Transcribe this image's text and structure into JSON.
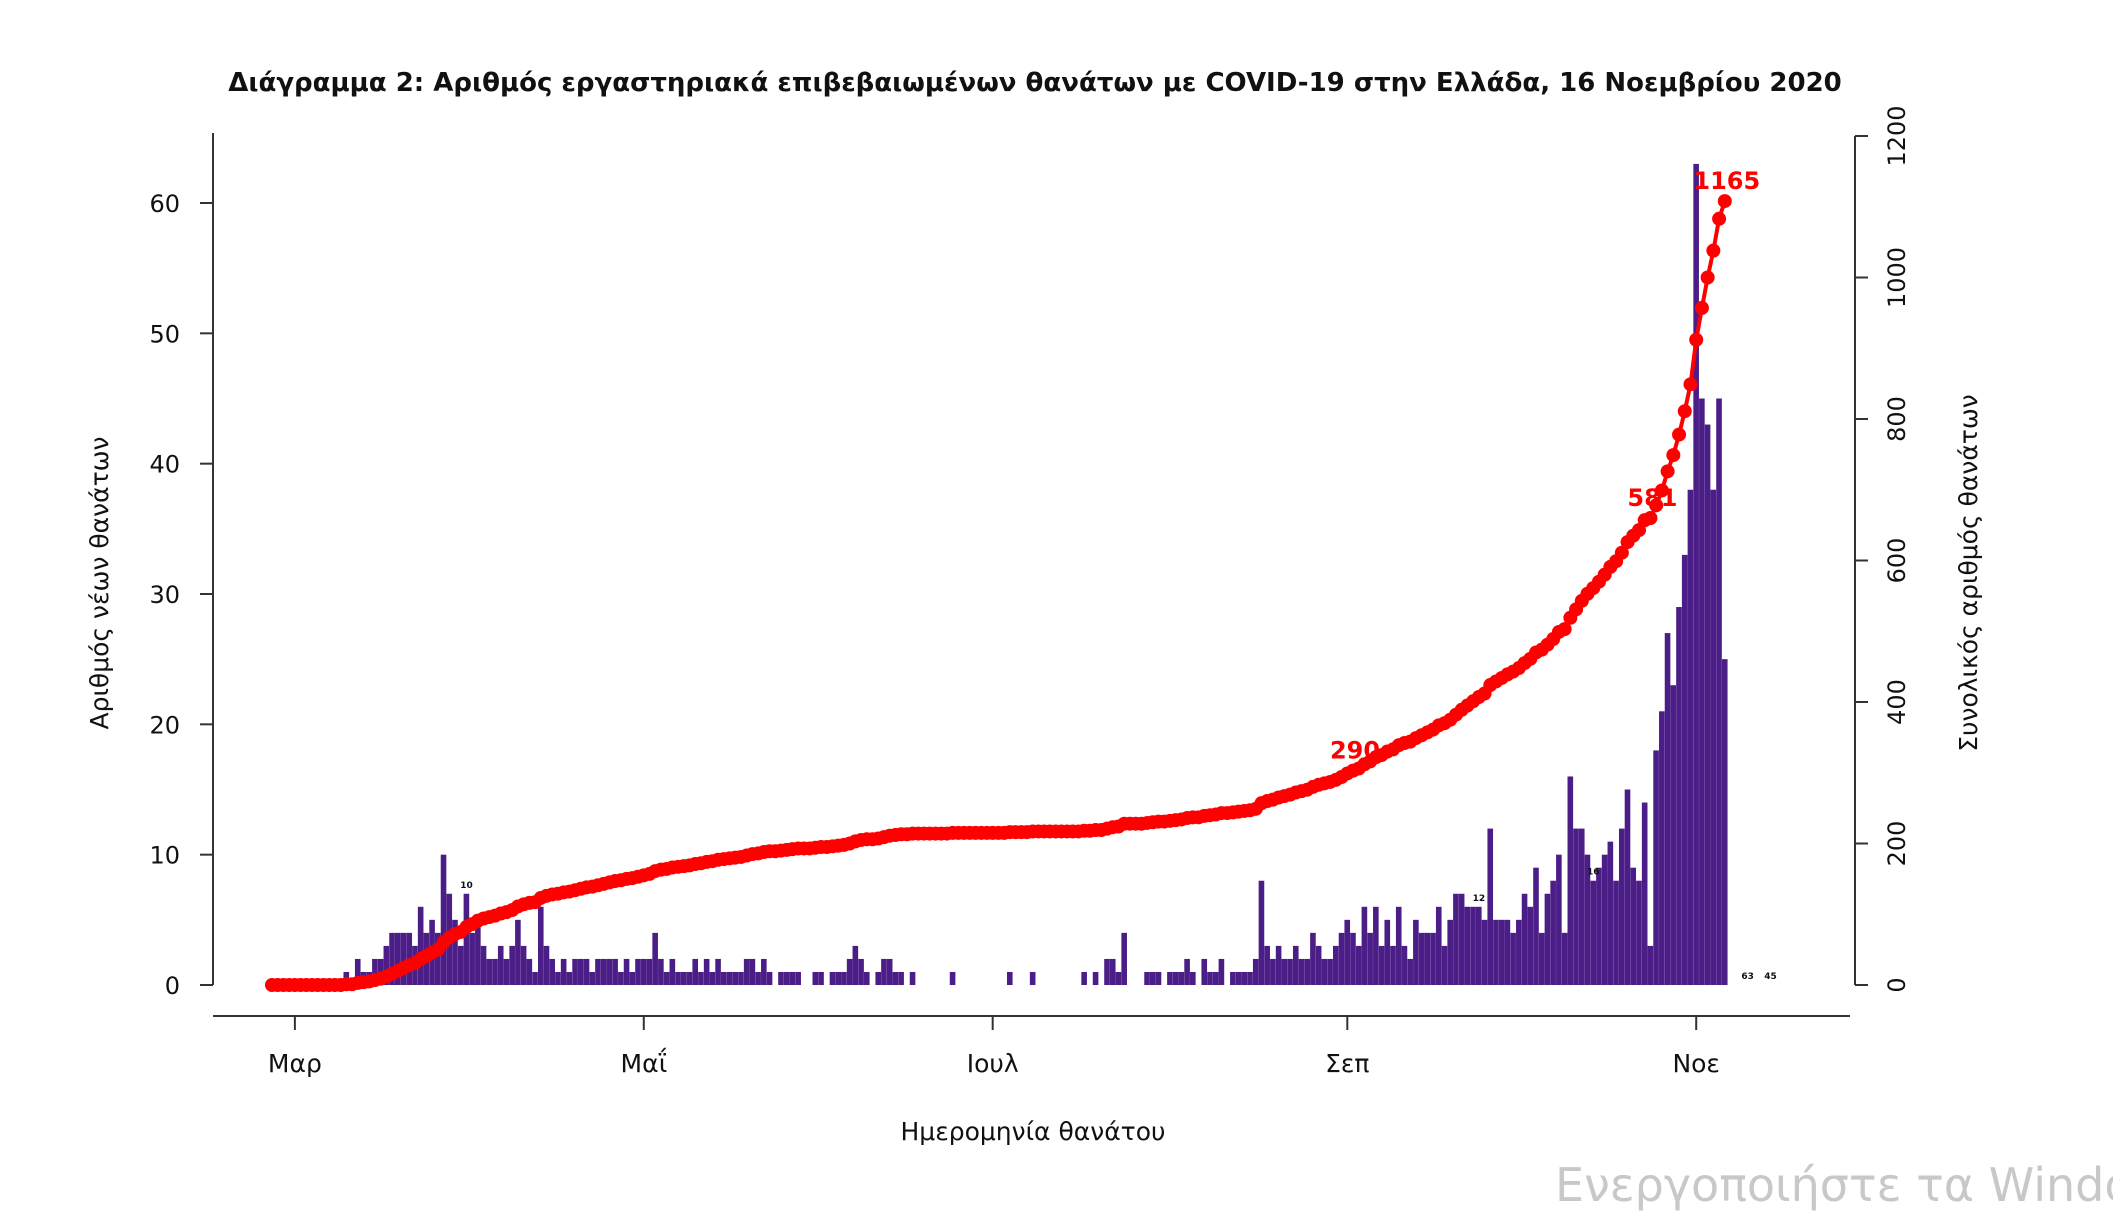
{
  "watermark": "Ενεργοποιήστε τα Windo",
  "chart_data": {
    "type": "bar+line",
    "title": "Διάγραμμα 2: Αριθμός εργαστηριακά επιβεβαιωμένων θανάτων με COVID-19 στην Ελλάδα, 16 Νοεμβρίου 2020",
    "xlabel": "Ημερομηνία θανάτου",
    "ylabel_left": "Αριθμός νέων θανάτων",
    "ylabel_right": "Συνολικός αριθμός θανάτων",
    "ylim_left": [
      0,
      65
    ],
    "ylim_right": [
      0,
      1200
    ],
    "yticks_left": [
      0,
      10,
      20,
      30,
      40,
      50,
      60
    ],
    "yticks_right": [
      0,
      200,
      400,
      600,
      800,
      1000,
      1200
    ],
    "x_start": "2020-02-26",
    "x_end": "2020-11-16",
    "month_ticks": [
      {
        "label": "Μαρ",
        "date": "2020-03-01"
      },
      {
        "label": "Μαΐ",
        "date": "2020-05-01"
      },
      {
        "label": "Ιουλ",
        "date": "2020-07-01"
      },
      {
        "label": "Σεπ",
        "date": "2020-09-01"
      },
      {
        "label": "Νοε",
        "date": "2020-11-01"
      }
    ],
    "colors": {
      "bars": "#4b1d87",
      "cumulative": "#ff0000"
    },
    "series": [
      {
        "name": "Νέοι θάνατοι",
        "kind": "bar",
        "values": [
          0,
          0,
          0,
          0,
          0,
          0,
          0,
          0,
          0,
          0,
          0,
          0,
          0,
          1,
          0,
          2,
          1,
          1,
          2,
          2,
          3,
          4,
          4,
          4,
          4,
          3,
          6,
          4,
          5,
          4,
          10,
          7,
          5,
          3,
          7,
          4,
          5,
          3,
          2,
          2,
          3,
          2,
          3,
          5,
          3,
          2,
          1,
          6,
          3,
          2,
          1,
          2,
          1,
          2,
          2,
          2,
          1,
          2,
          2,
          2,
          2,
          1,
          2,
          1,
          2,
          2,
          2,
          4,
          2,
          1,
          2,
          1,
          1,
          1,
          2,
          1,
          2,
          1,
          2,
          1,
          1,
          1,
          1,
          2,
          2,
          1,
          2,
          1,
          0,
          1,
          1,
          1,
          1,
          0,
          0,
          1,
          1,
          0,
          1,
          1,
          1,
          2,
          3,
          2,
          1,
          0,
          1,
          2,
          2,
          1,
          1,
          0,
          1,
          0,
          0,
          0,
          0,
          0,
          0,
          1,
          0,
          0,
          0,
          0,
          0,
          0,
          0,
          0,
          0,
          1,
          0,
          0,
          0,
          1,
          0,
          0,
          0,
          0,
          0,
          0,
          0,
          0,
          1,
          0,
          1,
          0,
          2,
          2,
          1,
          4,
          0,
          0,
          0,
          1,
          1,
          1,
          0,
          1,
          1,
          1,
          2,
          1,
          0,
          2,
          1,
          1,
          2,
          0,
          1,
          1,
          1,
          1,
          2,
          8,
          3,
          2,
          3,
          2,
          2,
          3,
          2,
          2,
          4,
          3,
          2,
          2,
          3,
          4,
          5,
          4,
          3,
          6,
          4,
          6,
          3,
          5,
          3,
          6,
          3,
          2,
          5,
          4,
          4,
          4,
          6,
          3,
          5,
          7,
          7,
          6,
          6,
          6,
          5,
          12,
          5,
          5,
          5,
          4,
          5,
          7,
          6,
          9,
          4,
          7,
          8,
          10,
          4,
          16,
          12,
          12,
          10,
          8,
          9,
          10,
          11,
          8,
          12,
          15,
          9,
          8,
          14,
          3,
          18,
          21,
          27,
          23,
          29,
          33,
          38,
          63,
          45,
          43,
          38,
          45,
          25
        ],
        "data_labels": [
          {
            "date": "2020-03-31",
            "text": "10"
          },
          {
            "date": "2020-09-24",
            "text": "12"
          },
          {
            "date": "2020-10-14",
            "text": "16"
          },
          {
            "date": "2020-11-10",
            "text": "63"
          },
          {
            "date": "2020-11-14",
            "text": "45"
          }
        ]
      },
      {
        "name": "Συνολικοί θάνατοι",
        "kind": "line",
        "values": "cumulative",
        "point_labels": [
          {
            "date": "2020-09-02",
            "text": "290"
          },
          {
            "date": "2020-10-24",
            "text": "581"
          },
          {
            "date": "2020-11-16",
            "text": "1165"
          }
        ]
      }
    ]
  }
}
